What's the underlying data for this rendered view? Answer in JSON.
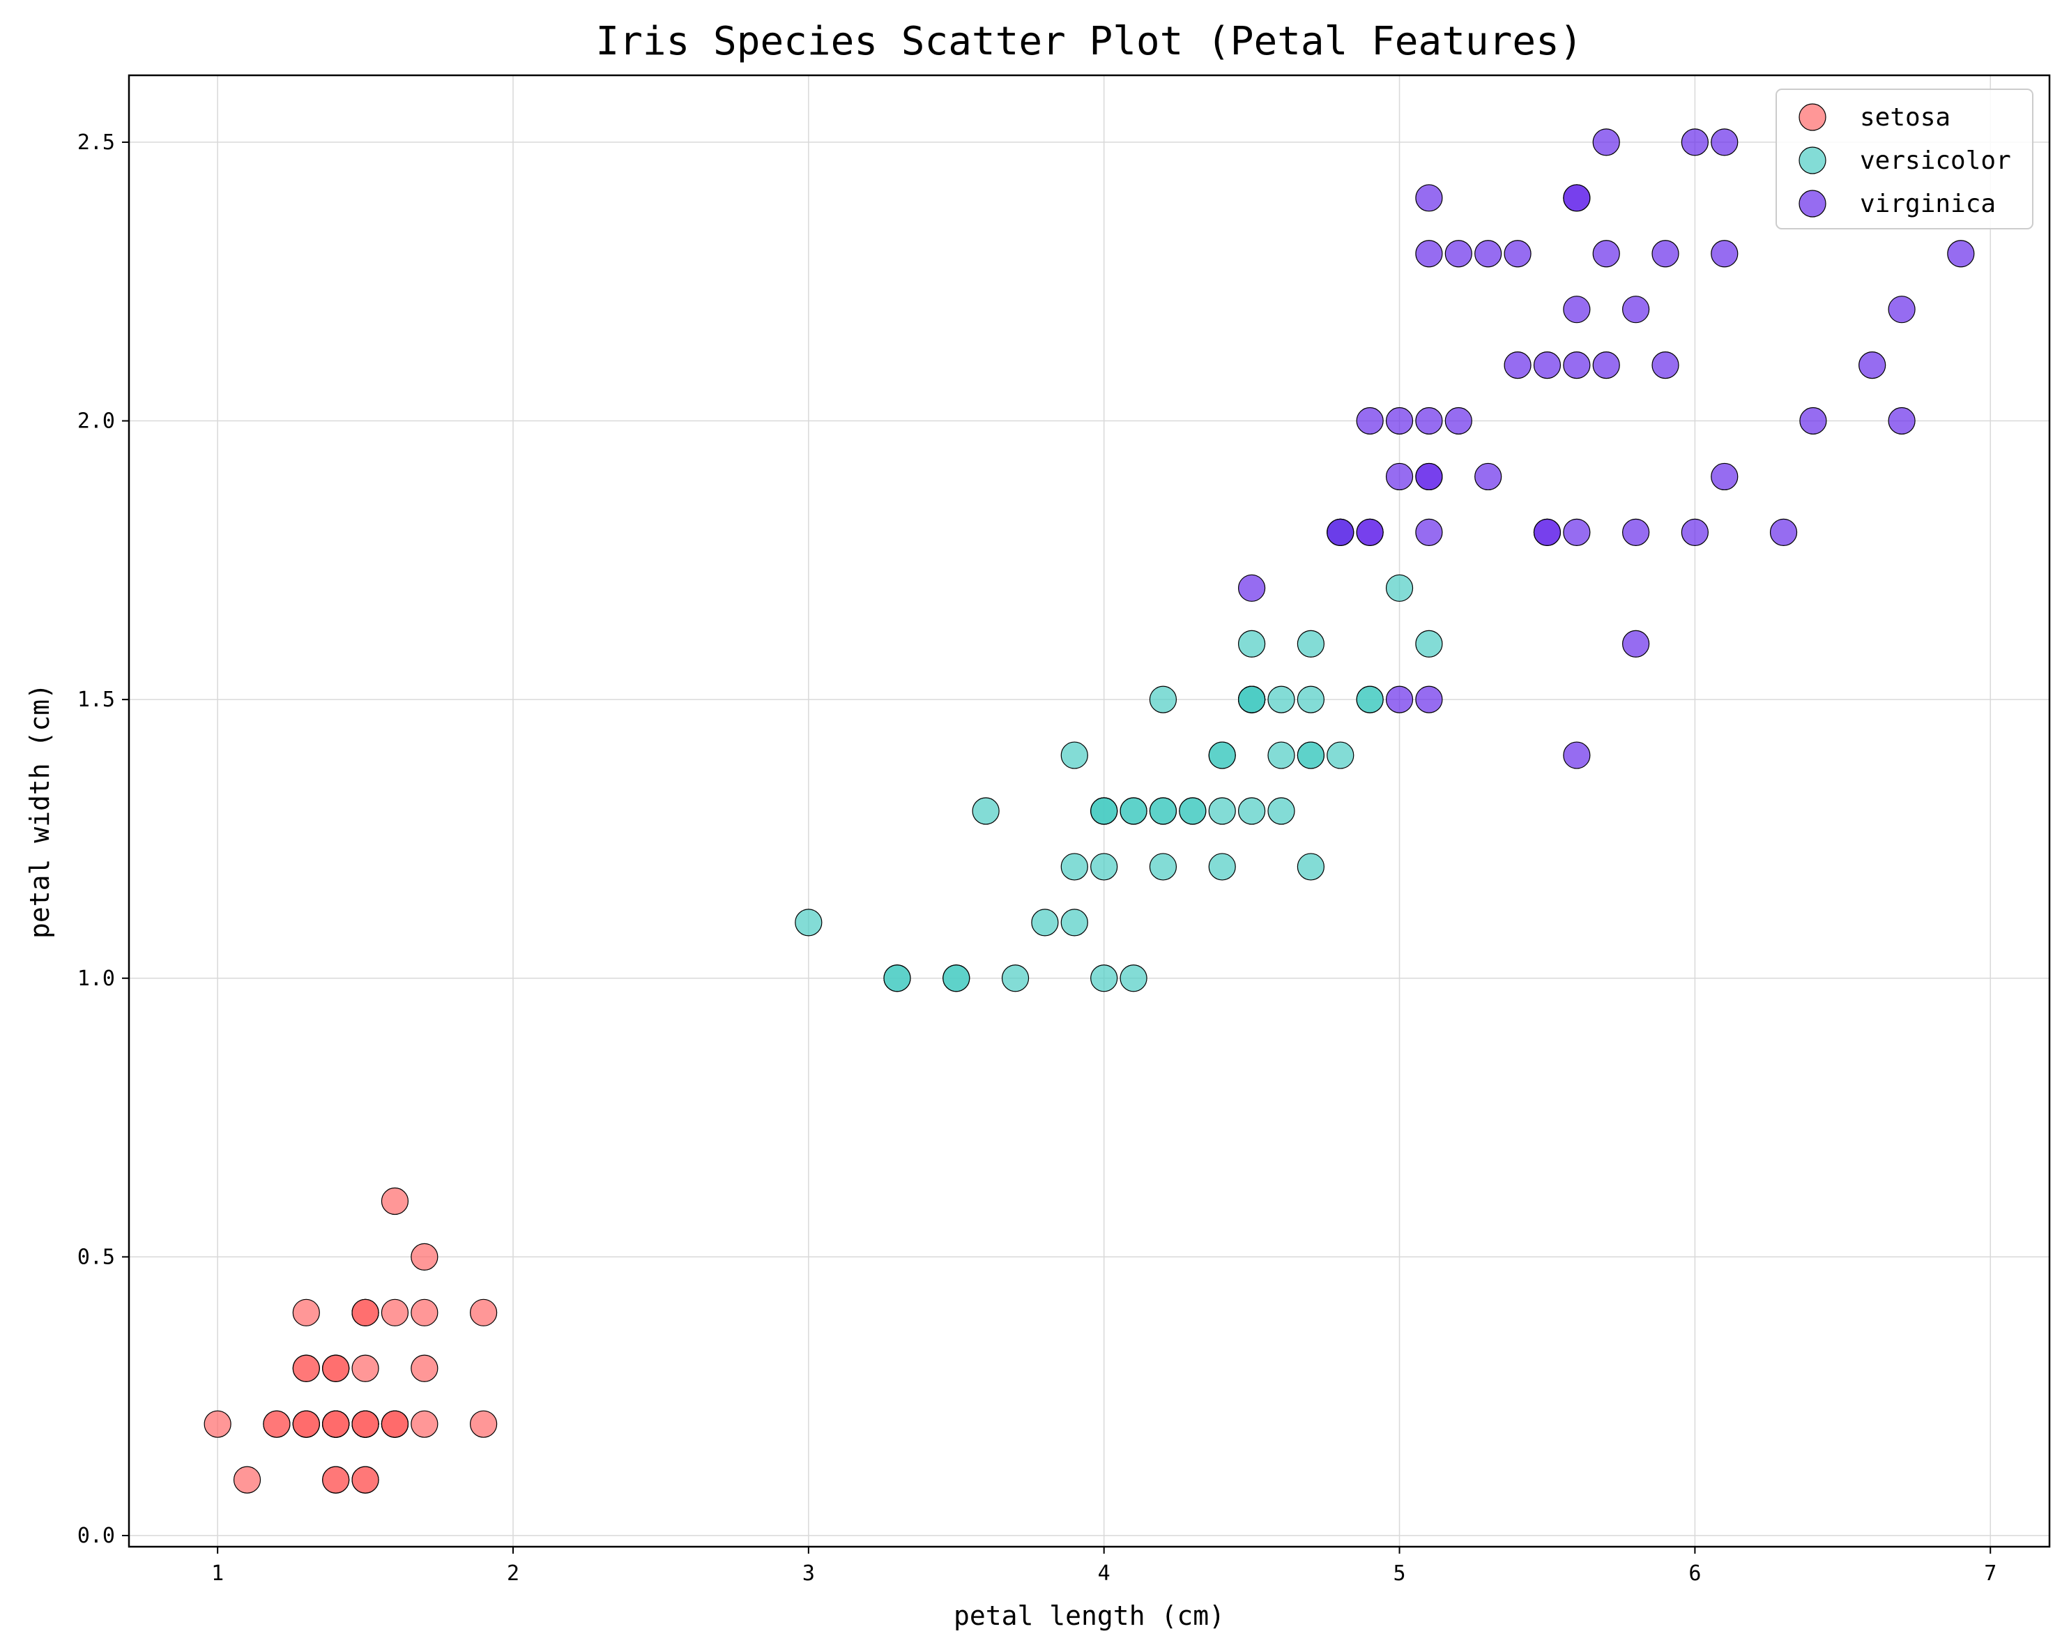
{
  "chart_data": {
    "type": "scatter",
    "title": "Iris Species Scatter Plot (Petal Features)",
    "xlabel": "petal length (cm)",
    "ylabel": "petal width (cm)",
    "xlim": [
      0.7,
      7.2
    ],
    "ylim": [
      -0.02,
      2.62
    ],
    "xticks": [
      1,
      2,
      3,
      4,
      5,
      6,
      7
    ],
    "xtick_labels": [
      "1",
      "2",
      "3",
      "4",
      "5",
      "6",
      "7"
    ],
    "yticks": [
      0.0,
      0.5,
      1.0,
      1.5,
      2.0,
      2.5
    ],
    "ytick_labels": [
      "0.0",
      "0.5",
      "1.0",
      "1.5",
      "2.0",
      "2.5"
    ],
    "grid": true,
    "legend_position": "top-right",
    "series": [
      {
        "name": "setosa",
        "color": "#FF6B6B",
        "points": [
          [
            1.4,
            0.2
          ],
          [
            1.4,
            0.2
          ],
          [
            1.3,
            0.2
          ],
          [
            1.5,
            0.2
          ],
          [
            1.4,
            0.2
          ],
          [
            1.7,
            0.4
          ],
          [
            1.4,
            0.3
          ],
          [
            1.5,
            0.2
          ],
          [
            1.4,
            0.2
          ],
          [
            1.5,
            0.1
          ],
          [
            1.5,
            0.2
          ],
          [
            1.6,
            0.2
          ],
          [
            1.4,
            0.1
          ],
          [
            1.1,
            0.1
          ],
          [
            1.2,
            0.2
          ],
          [
            1.5,
            0.4
          ],
          [
            1.3,
            0.4
          ],
          [
            1.4,
            0.3
          ],
          [
            1.7,
            0.3
          ],
          [
            1.5,
            0.3
          ],
          [
            1.7,
            0.2
          ],
          [
            1.5,
            0.4
          ],
          [
            1.0,
            0.2
          ],
          [
            1.7,
            0.5
          ],
          [
            1.9,
            0.2
          ],
          [
            1.6,
            0.2
          ],
          [
            1.6,
            0.4
          ],
          [
            1.5,
            0.2
          ],
          [
            1.4,
            0.2
          ],
          [
            1.6,
            0.2
          ],
          [
            1.6,
            0.2
          ],
          [
            1.5,
            0.4
          ],
          [
            1.5,
            0.1
          ],
          [
            1.4,
            0.2
          ],
          [
            1.5,
            0.2
          ],
          [
            1.2,
            0.2
          ],
          [
            1.3,
            0.2
          ],
          [
            1.4,
            0.1
          ],
          [
            1.3,
            0.2
          ],
          [
            1.5,
            0.2
          ],
          [
            1.3,
            0.3
          ],
          [
            1.3,
            0.3
          ],
          [
            1.3,
            0.2
          ],
          [
            1.6,
            0.6
          ],
          [
            1.9,
            0.4
          ],
          [
            1.4,
            0.3
          ],
          [
            1.6,
            0.2
          ],
          [
            1.4,
            0.2
          ],
          [
            1.5,
            0.2
          ],
          [
            1.4,
            0.2
          ]
        ]
      },
      {
        "name": "versicolor",
        "color": "#4ECDC4",
        "points": [
          [
            4.7,
            1.4
          ],
          [
            4.5,
            1.5
          ],
          [
            4.9,
            1.5
          ],
          [
            4.0,
            1.3
          ],
          [
            4.6,
            1.5
          ],
          [
            4.5,
            1.3
          ],
          [
            4.7,
            1.6
          ],
          [
            3.3,
            1.0
          ],
          [
            4.6,
            1.3
          ],
          [
            3.9,
            1.4
          ],
          [
            3.5,
            1.0
          ],
          [
            4.2,
            1.5
          ],
          [
            4.0,
            1.0
          ],
          [
            4.7,
            1.4
          ],
          [
            3.6,
            1.3
          ],
          [
            4.4,
            1.4
          ],
          [
            4.5,
            1.5
          ],
          [
            4.1,
            1.0
          ],
          [
            4.5,
            1.5
          ],
          [
            3.9,
            1.1
          ],
          [
            4.8,
            1.8
          ],
          [
            4.0,
            1.3
          ],
          [
            4.9,
            1.5
          ],
          [
            4.7,
            1.2
          ],
          [
            4.3,
            1.3
          ],
          [
            4.4,
            1.4
          ],
          [
            4.8,
            1.4
          ],
          [
            5.0,
            1.7
          ],
          [
            4.5,
            1.5
          ],
          [
            3.5,
            1.0
          ],
          [
            3.8,
            1.1
          ],
          [
            3.7,
            1.0
          ],
          [
            3.9,
            1.2
          ],
          [
            5.1,
            1.6
          ],
          [
            4.5,
            1.5
          ],
          [
            4.5,
            1.6
          ],
          [
            4.7,
            1.5
          ],
          [
            4.4,
            1.3
          ],
          [
            4.1,
            1.3
          ],
          [
            4.0,
            1.3
          ],
          [
            4.4,
            1.2
          ],
          [
            4.6,
            1.4
          ],
          [
            4.0,
            1.2
          ],
          [
            3.3,
            1.0
          ],
          [
            4.2,
            1.3
          ],
          [
            4.2,
            1.2
          ],
          [
            4.2,
            1.3
          ],
          [
            4.3,
            1.3
          ],
          [
            3.0,
            1.1
          ],
          [
            4.1,
            1.3
          ]
        ]
      },
      {
        "name": "virginica",
        "color": "#6A2EEB",
        "points": [
          [
            6.0,
            2.5
          ],
          [
            5.1,
            1.9
          ],
          [
            5.9,
            2.1
          ],
          [
            5.6,
            1.8
          ],
          [
            5.8,
            2.2
          ],
          [
            6.6,
            2.1
          ],
          [
            4.5,
            1.7
          ],
          [
            6.3,
            1.8
          ],
          [
            5.8,
            1.8
          ],
          [
            6.1,
            2.5
          ],
          [
            5.1,
            2.0
          ],
          [
            5.3,
            1.9
          ],
          [
            5.5,
            2.1
          ],
          [
            5.0,
            2.0
          ],
          [
            5.1,
            2.4
          ],
          [
            5.3,
            2.3
          ],
          [
            5.5,
            1.8
          ],
          [
            6.7,
            2.2
          ],
          [
            6.9,
            2.3
          ],
          [
            5.0,
            1.5
          ],
          [
            5.7,
            2.3
          ],
          [
            4.9,
            2.0
          ],
          [
            6.7,
            2.0
          ],
          [
            4.9,
            1.8
          ],
          [
            5.7,
            2.1
          ],
          [
            6.0,
            1.8
          ],
          [
            4.8,
            1.8
          ],
          [
            4.9,
            1.8
          ],
          [
            5.6,
            2.1
          ],
          [
            5.8,
            1.6
          ],
          [
            6.1,
            1.9
          ],
          [
            6.4,
            2.0
          ],
          [
            5.6,
            2.2
          ],
          [
            5.1,
            1.5
          ],
          [
            5.6,
            1.4
          ],
          [
            6.1,
            2.3
          ],
          [
            5.6,
            2.4
          ],
          [
            5.5,
            1.8
          ],
          [
            4.8,
            1.8
          ],
          [
            5.4,
            2.1
          ],
          [
            5.6,
            2.4
          ],
          [
            5.1,
            2.3
          ],
          [
            5.1,
            1.9
          ],
          [
            5.9,
            2.3
          ],
          [
            5.7,
            2.5
          ],
          [
            5.2,
            2.3
          ],
          [
            5.0,
            1.9
          ],
          [
            5.2,
            2.0
          ],
          [
            5.4,
            2.3
          ],
          [
            5.1,
            1.8
          ]
        ]
      }
    ]
  }
}
